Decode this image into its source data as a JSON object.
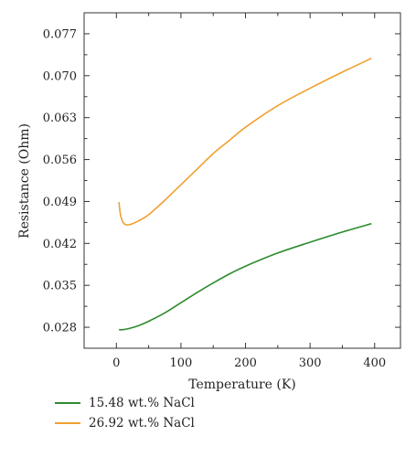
{
  "chart_data": {
    "type": "line",
    "xlabel": "Temperature (K)",
    "ylabel": "Resistance (Ohm)",
    "xlim": [
      -50,
      440
    ],
    "ylim": [
      0.0245,
      0.0805
    ],
    "x_ticks": [
      0,
      100,
      200,
      300,
      400
    ],
    "x_tick_labels": [
      "0",
      "100",
      "200",
      "300",
      "400"
    ],
    "y_ticks": [
      0.028,
      0.035,
      0.042,
      0.049,
      0.056,
      0.063,
      0.07,
      0.077
    ],
    "y_tick_labels": [
      "0.028",
      "0.035",
      "0.042",
      "0.049",
      "0.056",
      "0.063",
      "0.070",
      "0.077"
    ],
    "grid": false,
    "legend_position": "bottom",
    "series": [
      {
        "name": "15.48 wt.% NaCl",
        "color": "#2e8b2e",
        "x": [
          4,
          10,
          20,
          35,
          50,
          75,
          100,
          125,
          150,
          175,
          200,
          250,
          300,
          350,
          395
        ],
        "y": [
          0.0276,
          0.0276,
          0.0278,
          0.0283,
          0.029,
          0.0304,
          0.0321,
          0.0338,
          0.0354,
          0.0369,
          0.0382,
          0.0404,
          0.0422,
          0.0439,
          0.0453
        ]
      },
      {
        "name": "26.92 wt.% NaCl",
        "color": "#f0a030",
        "x": [
          4,
          6,
          9,
          13,
          18,
          25,
          35,
          50,
          75,
          100,
          125,
          150,
          175,
          200,
          250,
          300,
          350,
          395
        ],
        "y": [
          0.0489,
          0.047,
          0.0458,
          0.0452,
          0.0451,
          0.0453,
          0.0458,
          0.0468,
          0.0492,
          0.0518,
          0.0544,
          0.057,
          0.0592,
          0.0614,
          0.065,
          0.0679,
          0.0706,
          0.0729
        ]
      }
    ]
  }
}
